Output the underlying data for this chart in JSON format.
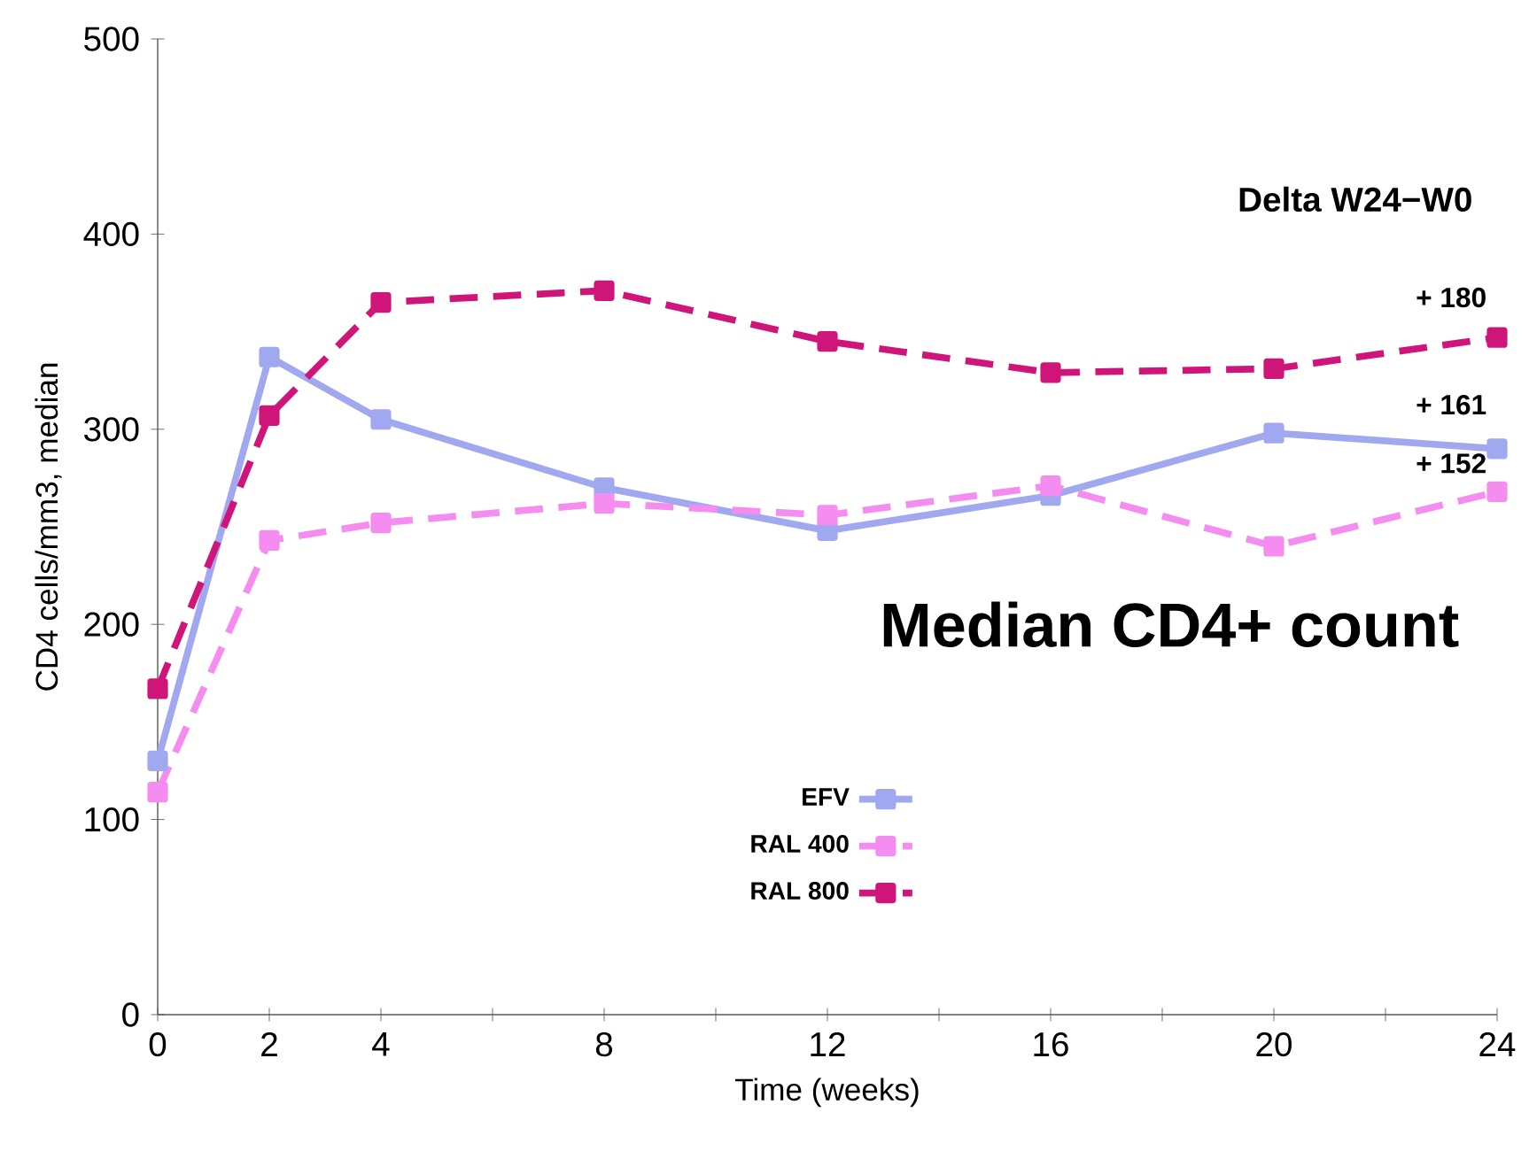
{
  "chart_data": {
    "type": "line",
    "xlabel": "Time (weeks)",
    "ylabel": "CD4 cells/mm3, median",
    "x": [
      0,
      2,
      4,
      8,
      12,
      16,
      20,
      24
    ],
    "series": [
      {
        "name": "EFV",
        "color": "#a0a8f0",
        "line_style": "solid",
        "values": [
          130,
          337,
          305,
          270,
          248,
          266,
          298,
          290
        ]
      },
      {
        "name": "RAL 400",
        "color": "#f58cf0",
        "line_style": "dashed",
        "values": [
          114,
          243,
          252,
          262,
          256,
          271,
          240,
          268
        ]
      },
      {
        "name": "RAL 800",
        "color": "#d0157a",
        "line_style": "dashed",
        "values": [
          167,
          307,
          365,
          371,
          345,
          329,
          331,
          347
        ]
      }
    ],
    "xlim": [
      0,
      24
    ],
    "ylim": [
      0,
      500
    ],
    "xticks": [
      0,
      2,
      4,
      {
        "value": 6,
        "label": null
      },
      8,
      {
        "value": 10,
        "label": null
      },
      12,
      {
        "value": 14,
        "label": null
      },
      16,
      {
        "value": 18,
        "label": null
      },
      20,
      {
        "value": 22,
        "label": null
      },
      24
    ],
    "yticks": [
      0,
      100,
      200,
      300,
      400,
      500
    ],
    "marker": "square",
    "legend": "bottom",
    "grid": false,
    "annotations": [
      "Delta W24−W0",
      "Median CD4+ count",
      "+ 180",
      "+ 161",
      "+ 152"
    ]
  }
}
